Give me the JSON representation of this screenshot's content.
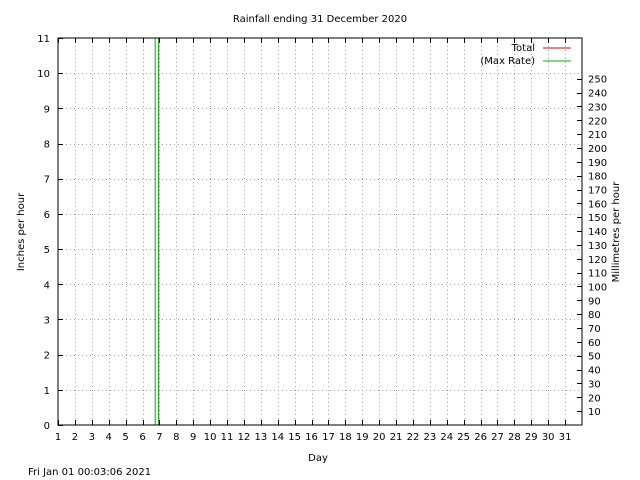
{
  "chart_data": {
    "type": "line",
    "title": "Rainfall ending 31 December 2020",
    "xlabel": "Day",
    "ylabel": "Inches per hour",
    "y2label": "Millimetres per hour",
    "x_ticks": [
      "1",
      "2",
      "3",
      "4",
      "5",
      "6",
      "7",
      "8",
      "9",
      "10",
      "11",
      "12",
      "13",
      "14",
      "15",
      "16",
      "17",
      "18",
      "19",
      "20",
      "21",
      "22",
      "23",
      "24",
      "25",
      "26",
      "27",
      "28",
      "29",
      "30",
      "31"
    ],
    "xlim": [
      1,
      32
    ],
    "ylim": [
      0,
      11
    ],
    "y_ticks": [
      0,
      1,
      2,
      3,
      4,
      5,
      6,
      7,
      8,
      9,
      10,
      11
    ],
    "y2_ticks": [
      10,
      20,
      30,
      40,
      50,
      60,
      70,
      80,
      90,
      100,
      110,
      120,
      130,
      140,
      150,
      160,
      170,
      180,
      190,
      200,
      210,
      220,
      230,
      240,
      250
    ],
    "grid": true,
    "legend_position": "top-right",
    "series": [
      {
        "name": "Total",
        "color": "#e00000",
        "x": [
          6.9
        ],
        "y": [
          0
        ]
      },
      {
        "name": "(Max Rate)",
        "color": "#00b000",
        "x": [
          6.75,
          6.95
        ],
        "y": [
          11,
          11
        ]
      }
    ]
  },
  "footer_timestamp": "Fri Jan 01 00:03:06 2021"
}
